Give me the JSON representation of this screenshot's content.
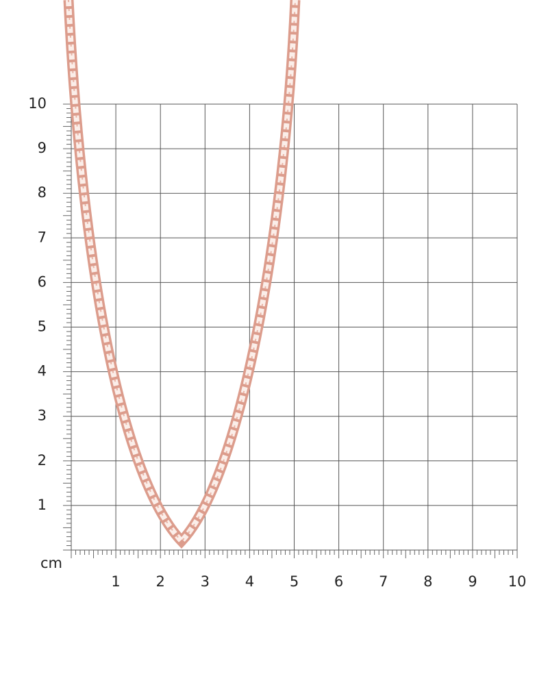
{
  "ruler": {
    "unit": "cm",
    "x_labels": [
      "1",
      "2",
      "3",
      "4",
      "5",
      "6",
      "7",
      "8",
      "9",
      "10"
    ],
    "y_labels": [
      "1",
      "2",
      "3",
      "4",
      "5",
      "6",
      "7",
      "8",
      "9",
      "10"
    ]
  }
}
